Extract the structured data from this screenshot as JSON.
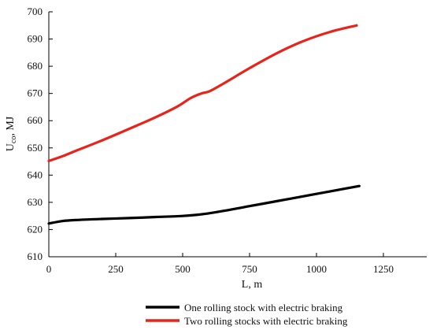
{
  "chart_data": {
    "type": "line",
    "xlabel": "L, m",
    "ylabel": "U",
    "ylabel_sub": "co",
    "ylabel_unit": ", MJ",
    "xlim": [
      0,
      1300
    ],
    "ylim": [
      610,
      700
    ],
    "xticks": [
      0,
      250,
      500,
      750,
      1000,
      1250
    ],
    "yticks": [
      610,
      620,
      630,
      640,
      650,
      660,
      670,
      680,
      690,
      700
    ],
    "grid": false,
    "legend_position": "bottom-center",
    "series": [
      {
        "name": "One rolling stock with electric braking",
        "color": "#000000",
        "x": [
          0,
          50,
          100,
          200,
          300,
          400,
          500,
          580,
          650,
          750,
          850,
          950,
          1050,
          1160
        ],
        "y": [
          622.2,
          623.1,
          623.5,
          623.9,
          624.2,
          624.6,
          625.0,
          625.7,
          626.8,
          628.6,
          630.4,
          632.2,
          634.0,
          636.0
        ]
      },
      {
        "name": "Two rolling stocks with electric braking",
        "color": "#e8231a",
        "x": [
          0,
          50,
          100,
          200,
          300,
          400,
          480,
          530,
          570,
          600,
          650,
          750,
          850,
          950,
          1050,
          1150
        ],
        "y": [
          645.2,
          646.9,
          648.9,
          652.8,
          657.0,
          661.3,
          665.2,
          668.3,
          670.0,
          670.8,
          673.5,
          679.3,
          684.7,
          689.2,
          692.6,
          695.0
        ]
      }
    ]
  }
}
